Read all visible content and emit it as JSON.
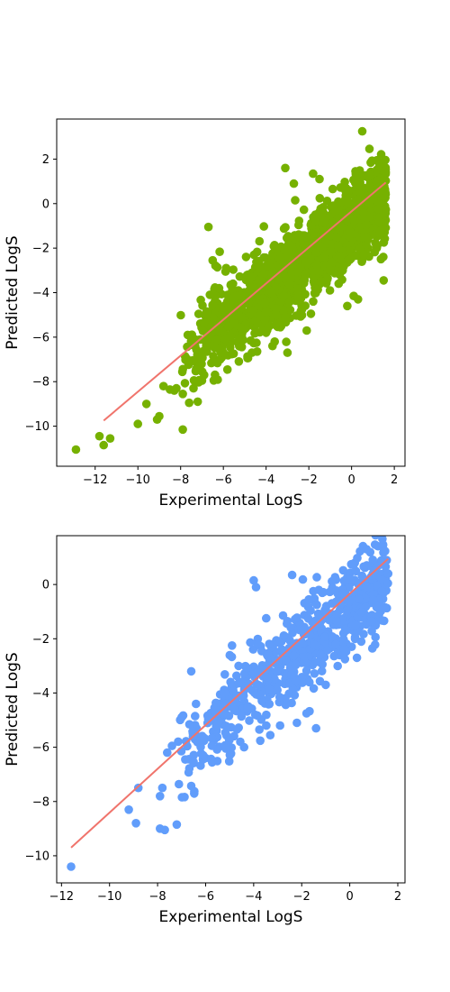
{
  "chart_data": [
    {
      "type": "scatter",
      "xlabel": "Experimental LogS",
      "ylabel": "Predicted LogS",
      "xlim": [
        -13.8,
        2.5
      ],
      "ylim": [
        -11.8,
        3.8
      ],
      "xticks": [
        -12,
        -10,
        -8,
        -6,
        -4,
        -2,
        0,
        2
      ],
      "yticks": [
        -10,
        -8,
        -6,
        -4,
        -2,
        0,
        2
      ],
      "xtick_labels": [
        "−12",
        "−10",
        "−8",
        "−6",
        "−4",
        "−2",
        "0",
        "2"
      ],
      "ytick_labels": [
        "−10",
        "−8",
        "−6",
        "−4",
        "−2",
        "0",
        "2"
      ],
      "grid": false,
      "marker_color": "#76b100",
      "line_color": "#f0746c",
      "fit_line": {
        "x": [
          -11.6,
          1.6
        ],
        "y": [
          -9.75,
          0.95
        ]
      },
      "points": [
        [
          -12.9,
          -11.05
        ],
        [
          -11.8,
          -10.45
        ],
        [
          -11.6,
          -10.85
        ],
        [
          -11.3,
          -10.55
        ],
        [
          -10.0,
          -9.9
        ],
        [
          -9.6,
          -9.0
        ],
        [
          -9.1,
          -9.7
        ],
        [
          -9.0,
          -9.55
        ],
        [
          -8.8,
          -8.2
        ],
        [
          -8.5,
          -8.35
        ],
        [
          -8.3,
          -8.4
        ],
        [
          -7.9,
          -10.15
        ],
        [
          -6.7,
          -1.05
        ],
        [
          -6.5,
          -2.55
        ],
        [
          -5.9,
          -3.05
        ],
        [
          -6.2,
          -3.8
        ],
        [
          -3.1,
          1.6
        ],
        [
          0.5,
          3.25
        ],
        [
          -1.5,
          1.1
        ],
        [
          -2.7,
          0.9
        ],
        [
          -3.6,
          -6.2
        ],
        [
          -3.0,
          -6.7
        ],
        [
          -2.1,
          -5.7
        ],
        [
          -1.9,
          -4.95
        ],
        [
          -0.2,
          -4.6
        ],
        [
          0.1,
          -4.15
        ],
        [
          0.3,
          -4.3
        ],
        [
          1.5,
          -3.45
        ],
        [
          -3.1,
          -5.2
        ],
        [
          -4.0,
          -5.8
        ],
        [
          -3.7,
          -6.4
        ],
        [
          -4.6,
          -4.8
        ],
        [
          -6.3,
          -6.1
        ],
        [
          -7.1,
          -7.3
        ],
        [
          -6.9,
          -7.7
        ],
        [
          -7.4,
          -8.3
        ],
        [
          -7.9,
          -8.55
        ],
        [
          -8.2,
          -8.3
        ],
        [
          -7.6,
          -8.95
        ],
        [
          -7.2,
          -8.9
        ]
      ],
      "cloud": {
        "count": 1600,
        "x_range": [
          -8.0,
          1.6
        ],
        "slope": 0.76,
        "intercept": -0.85,
        "spread": 0.95,
        "seed": 11
      }
    },
    {
      "type": "scatter",
      "xlabel": "Experimental LogS",
      "ylabel": "Predicted LogS",
      "xlim": [
        -12.2,
        2.3
      ],
      "ylim": [
        -11.0,
        1.8
      ],
      "xticks": [
        -12,
        -10,
        -8,
        -6,
        -4,
        -2,
        0,
        2
      ],
      "yticks": [
        -10,
        -8,
        -6,
        -4,
        -2,
        0
      ],
      "xtick_labels": [
        "−12",
        "−10",
        "−8",
        "−6",
        "−4",
        "−2",
        "0",
        "2"
      ],
      "ytick_labels": [
        "−10",
        "−8",
        "−6",
        "−4",
        "−2",
        "0"
      ],
      "grid": false,
      "marker_color": "#619dfb",
      "line_color": "#f0746c",
      "fit_line": {
        "x": [
          -11.6,
          1.6
        ],
        "y": [
          -9.7,
          0.95
        ]
      },
      "points": [
        [
          -11.6,
          -10.4
        ],
        [
          -9.2,
          -8.3
        ],
        [
          -8.9,
          -8.8
        ],
        [
          -8.8,
          -7.5
        ],
        [
          -7.9,
          -9.0
        ],
        [
          -7.7,
          -9.05
        ],
        [
          -7.2,
          -8.85
        ],
        [
          -7.8,
          -7.5
        ],
        [
          -7.9,
          -7.8
        ],
        [
          -7.6,
          -6.2
        ],
        [
          -7.4,
          -5.95
        ],
        [
          -7.0,
          -4.9
        ],
        [
          -6.6,
          -3.2
        ],
        [
          -6.4,
          -4.4
        ],
        [
          -5.2,
          -4.0
        ],
        [
          -4.4,
          -6.0
        ],
        [
          -3.9,
          -0.1
        ],
        [
          -2.4,
          0.35
        ],
        [
          -1.7,
          -0.55
        ],
        [
          -1.4,
          -5.3
        ],
        [
          -1.8,
          -4.75
        ],
        [
          -2.2,
          -5.1
        ],
        [
          -4.9,
          -2.25
        ],
        [
          -4.0,
          0.15
        ],
        [
          -2.9,
          -5.2
        ],
        [
          -1.0,
          -3.7
        ],
        [
          -0.2,
          -2.75
        ],
        [
          0.3,
          -2.7
        ],
        [
          0.9,
          -1.35
        ],
        [
          1.6,
          0.4
        ],
        [
          0.7,
          1.3
        ],
        [
          -6.1,
          -6.3
        ]
      ],
      "cloud": {
        "count": 700,
        "x_range": [
          -7.5,
          1.6
        ],
        "slope": 0.76,
        "intercept": -0.85,
        "spread": 0.85,
        "seed": 29
      }
    }
  ]
}
